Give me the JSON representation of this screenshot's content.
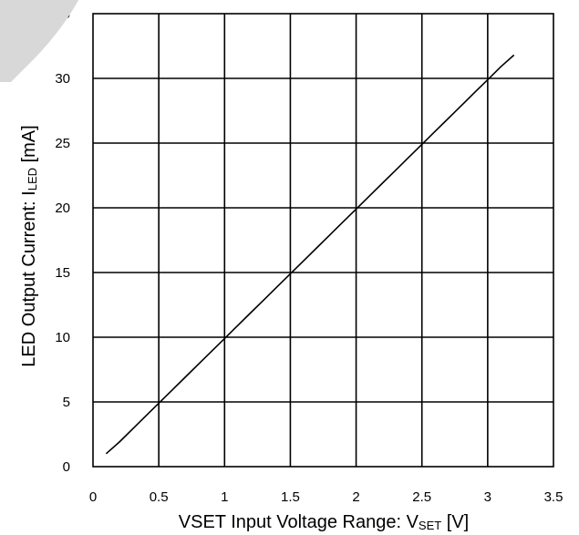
{
  "chart_data": {
    "type": "line",
    "title": "",
    "xlabel": {
      "main": "VSET Input Voltage Range: V",
      "sub": "SET",
      "unit": " [V]"
    },
    "ylabel": {
      "main": "LED Output Current: I",
      "sub": "LED",
      "unit": " [mA]"
    },
    "xlim": [
      0,
      3.5
    ],
    "ylim": [
      0,
      35
    ],
    "xticks": [
      "0",
      "0.5",
      "1",
      "1.5",
      "2",
      "2.5",
      "3",
      "3.5"
    ],
    "yticks": [
      "0",
      "5",
      "10",
      "15",
      "20",
      "25",
      "30",
      "35"
    ],
    "grid": true,
    "legend": "none",
    "series": [
      {
        "x": [
          0.1,
          0.2,
          0.3,
          0.4,
          0.5,
          0.6,
          0.7,
          0.8,
          0.9,
          1.0,
          1.1,
          1.2,
          1.3,
          1.4,
          1.5,
          1.6,
          1.7,
          1.8,
          1.9,
          2.0,
          2.1,
          2.2,
          2.3,
          2.4,
          2.5,
          2.6,
          2.7,
          2.8,
          2.9,
          3.0,
          3.1,
          3.2
        ],
        "y": [
          1.0,
          1.9,
          2.9,
          3.9,
          4.9,
          5.9,
          6.9,
          7.9,
          8.9,
          9.9,
          10.9,
          11.9,
          12.9,
          13.9,
          14.9,
          15.9,
          16.9,
          17.9,
          18.9,
          19.9,
          20.9,
          21.9,
          22.9,
          23.9,
          24.9,
          25.9,
          26.9,
          27.9,
          28.9,
          29.9,
          30.9,
          31.8
        ]
      }
    ]
  },
  "style": {
    "line_color": "#000000",
    "grid_color": "#000000",
    "corner_mark_color": "#d8d8d8"
  }
}
